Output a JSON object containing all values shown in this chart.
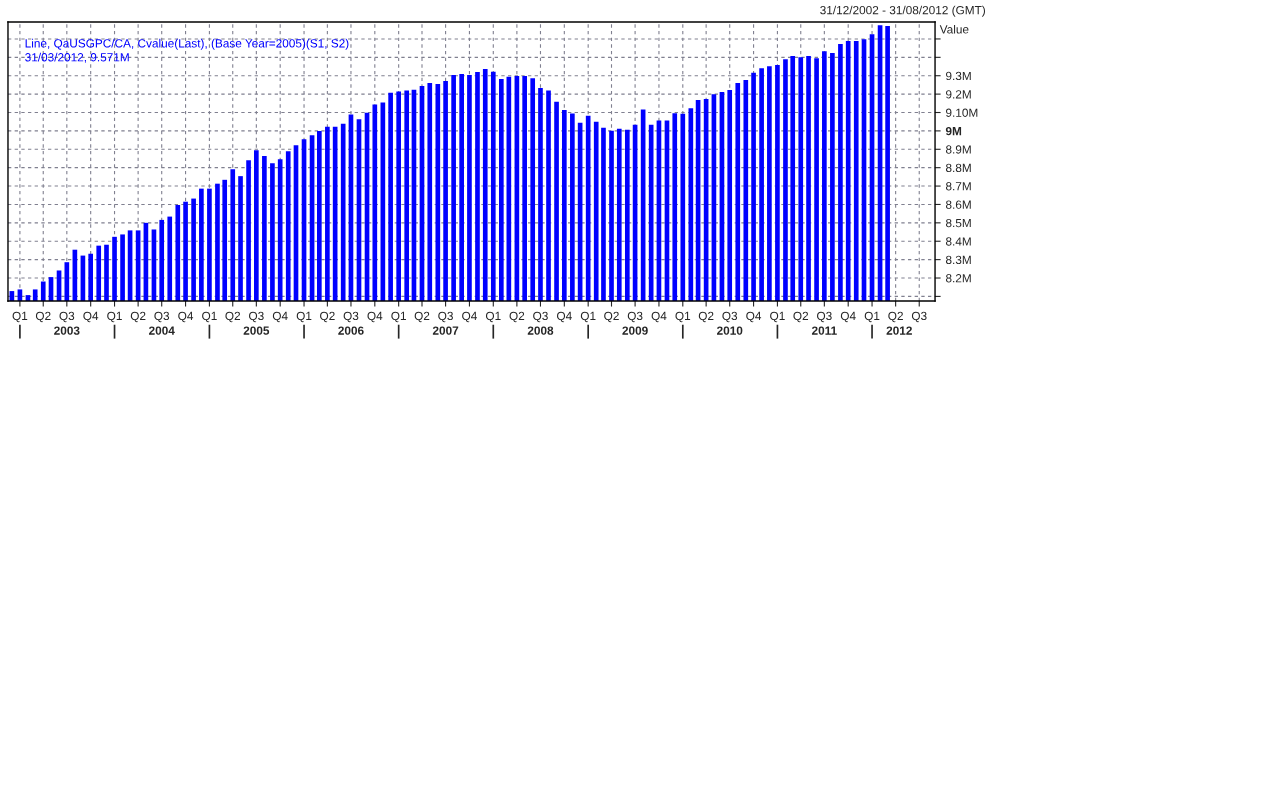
{
  "chart_data": {
    "type": "bar",
    "title": "31/12/2002 - 31/08/2012 (GMT)",
    "ylabel": "Value",
    "annotations": [
      "Line, QaUSGPC/CA, Cvalue(Last), (Base Year=2005)(S1, S2)",
      "31/03/2012, 9.571M"
    ],
    "x": [
      "2002-12",
      "2003-01",
      "2003-02",
      "2003-03",
      "2003-04",
      "2003-05",
      "2003-06",
      "2003-07",
      "2003-08",
      "2003-09",
      "2003-10",
      "2003-11",
      "2003-12",
      "2004-01",
      "2004-02",
      "2004-03",
      "2004-04",
      "2004-05",
      "2004-06",
      "2004-07",
      "2004-08",
      "2004-09",
      "2004-10",
      "2004-11",
      "2004-12",
      "2005-01",
      "2005-02",
      "2005-03",
      "2005-04",
      "2005-05",
      "2005-06",
      "2005-07",
      "2005-08",
      "2005-09",
      "2005-10",
      "2005-11",
      "2005-12",
      "2006-01",
      "2006-02",
      "2006-03",
      "2006-04",
      "2006-05",
      "2006-06",
      "2006-07",
      "2006-08",
      "2006-09",
      "2006-10",
      "2006-11",
      "2006-12",
      "2007-01",
      "2007-02",
      "2007-03",
      "2007-04",
      "2007-05",
      "2007-06",
      "2007-07",
      "2007-08",
      "2007-09",
      "2007-10",
      "2007-11",
      "2007-12",
      "2008-01",
      "2008-02",
      "2008-03",
      "2008-04",
      "2008-05",
      "2008-06",
      "2008-07",
      "2008-08",
      "2008-09",
      "2008-10",
      "2008-11",
      "2008-12",
      "2009-01",
      "2009-02",
      "2009-03",
      "2009-04",
      "2009-05",
      "2009-06",
      "2009-07",
      "2009-08",
      "2009-09",
      "2009-10",
      "2009-11",
      "2009-12",
      "2010-01",
      "2010-02",
      "2010-03",
      "2010-04",
      "2010-05",
      "2010-06",
      "2010-07",
      "2010-08",
      "2010-09",
      "2010-10",
      "2010-11",
      "2010-12",
      "2011-01",
      "2011-02",
      "2011-03",
      "2011-04",
      "2011-05",
      "2011-06",
      "2011-07",
      "2011-08",
      "2011-09",
      "2011-10",
      "2011-11",
      "2011-12",
      "2012-01",
      "2012-02",
      "2012-03"
    ],
    "values": [
      8.129,
      8.138,
      8.107,
      8.138,
      8.181,
      8.205,
      8.241,
      8.286,
      8.354,
      8.322,
      8.332,
      8.376,
      8.381,
      8.424,
      8.437,
      8.459,
      8.459,
      8.5,
      8.464,
      8.516,
      8.534,
      8.597,
      8.615,
      8.632,
      8.686,
      8.686,
      8.713,
      8.734,
      8.792,
      8.754,
      8.841,
      8.895,
      8.864,
      8.824,
      8.846,
      8.889,
      8.922,
      8.954,
      8.976,
      9.0,
      9.023,
      9.023,
      9.039,
      9.089,
      9.064,
      9.098,
      9.143,
      9.154,
      9.208,
      9.214,
      9.219,
      9.224,
      9.244,
      9.26,
      9.255,
      9.271,
      9.304,
      9.309,
      9.304,
      9.32,
      9.336,
      9.322,
      9.282,
      9.295,
      9.298,
      9.298,
      9.286,
      9.233,
      9.219,
      9.159,
      9.114,
      9.095,
      9.044,
      9.082,
      9.05,
      9.017,
      9.001,
      9.012,
      9.006,
      9.033,
      9.116,
      9.033,
      9.057,
      9.057,
      9.096,
      9.093,
      9.123,
      9.168,
      9.174,
      9.199,
      9.212,
      9.223,
      9.26,
      9.277,
      9.316,
      9.341,
      9.352,
      9.358,
      9.39,
      9.407,
      9.401,
      9.407,
      9.395,
      9.433,
      9.423,
      9.473,
      9.489,
      9.489,
      9.498,
      9.525,
      9.574,
      9.571
    ],
    "color": "#0000ff",
    "ylim": [
      8.075,
      9.592
    ],
    "yticks": [
      {
        "value": 8.1,
        "label": null
      },
      {
        "value": 8.2,
        "label": "8.2M"
      },
      {
        "value": 8.3,
        "label": "8.3M"
      },
      {
        "value": 8.4,
        "label": "8.4M"
      },
      {
        "value": 8.5,
        "label": "8.5M"
      },
      {
        "value": 8.6,
        "label": "8.6M"
      },
      {
        "value": 8.7,
        "label": "8.7M"
      },
      {
        "value": 8.8,
        "label": "8.8M"
      },
      {
        "value": 8.9,
        "label": "8.9M"
      },
      {
        "value": 9.0,
        "label": "9M"
      },
      {
        "value": 9.1,
        "label": "9.10M"
      },
      {
        "value": 9.2,
        "label": "9.2M"
      },
      {
        "value": 9.3,
        "label": "9.3M"
      },
      {
        "value": 9.4,
        "label": null
      },
      {
        "value": 9.5,
        "label": null
      }
    ],
    "xlim": [
      "2002-11-16",
      "2012-08-31"
    ],
    "xticks": [
      {
        "value": "2003-01",
        "label": "Q1"
      },
      {
        "value": "2003-04",
        "label": "Q2"
      },
      {
        "value": "2003-07",
        "label": "Q3"
      },
      {
        "value": "2003-10",
        "label": "Q4"
      },
      {
        "value": "2004-01",
        "label": "Q1"
      },
      {
        "value": "2004-04",
        "label": "Q2"
      },
      {
        "value": "2004-07",
        "label": "Q3"
      },
      {
        "value": "2004-10",
        "label": "Q4"
      },
      {
        "value": "2005-01",
        "label": "Q1"
      },
      {
        "value": "2005-04",
        "label": "Q2"
      },
      {
        "value": "2005-07",
        "label": "Q3"
      },
      {
        "value": "2005-10",
        "label": "Q4"
      },
      {
        "value": "2006-01",
        "label": "Q1"
      },
      {
        "value": "2006-04",
        "label": "Q2"
      },
      {
        "value": "2006-07",
        "label": "Q3"
      },
      {
        "value": "2006-10",
        "label": "Q4"
      },
      {
        "value": "2007-01",
        "label": "Q1"
      },
      {
        "value": "2007-04",
        "label": "Q2"
      },
      {
        "value": "2007-07",
        "label": "Q3"
      },
      {
        "value": "2007-10",
        "label": "Q4"
      },
      {
        "value": "2008-01",
        "label": "Q1"
      },
      {
        "value": "2008-04",
        "label": "Q2"
      },
      {
        "value": "2008-07",
        "label": "Q3"
      },
      {
        "value": "2008-10",
        "label": "Q4"
      },
      {
        "value": "2009-01",
        "label": "Q1"
      },
      {
        "value": "2009-04",
        "label": "Q2"
      },
      {
        "value": "2009-07",
        "label": "Q3"
      },
      {
        "value": "2009-10",
        "label": "Q4"
      },
      {
        "value": "2010-01",
        "label": "Q1"
      },
      {
        "value": "2010-04",
        "label": "Q2"
      },
      {
        "value": "2010-07",
        "label": "Q3"
      },
      {
        "value": "2010-10",
        "label": "Q4"
      },
      {
        "value": "2011-01",
        "label": "Q1"
      },
      {
        "value": "2011-04",
        "label": "Q2"
      },
      {
        "value": "2011-07",
        "label": "Q3"
      },
      {
        "value": "2011-10",
        "label": "Q4"
      },
      {
        "value": "2012-01",
        "label": "Q1"
      },
      {
        "value": "2012-04",
        "label": "Q2"
      },
      {
        "value": "2012-07",
        "label": "Q3"
      }
    ],
    "x2lim": [
      "2002-11-16",
      "2012-08-31"
    ],
    "x2ticks": [
      {
        "value": "2003-01",
        "label": null
      },
      {
        "value": "2003-07",
        "label": "2003"
      },
      {
        "value": "2004-01",
        "label": null
      },
      {
        "value": "2004-07",
        "label": "2004"
      },
      {
        "value": "2005-01",
        "label": null
      },
      {
        "value": "2005-07",
        "label": "2005"
      },
      {
        "value": "2006-01",
        "label": null
      },
      {
        "value": "2006-07",
        "label": "2006"
      },
      {
        "value": "2007-01",
        "label": null
      },
      {
        "value": "2007-07",
        "label": "2007"
      },
      {
        "value": "2008-01",
        "label": null
      },
      {
        "value": "2008-07",
        "label": "2008"
      },
      {
        "value": "2009-01",
        "label": null
      },
      {
        "value": "2009-07",
        "label": "2009"
      },
      {
        "value": "2010-01",
        "label": null
      },
      {
        "value": "2010-07",
        "label": "2010"
      },
      {
        "value": "2011-01",
        "label": null
      },
      {
        "value": "2011-07",
        "label": "2011"
      },
      {
        "value": "2012-01",
        "label": null
      },
      {
        "value": "2012-04-15",
        "label": "2012"
      }
    ],
    "grid": true,
    "legend": false
  }
}
